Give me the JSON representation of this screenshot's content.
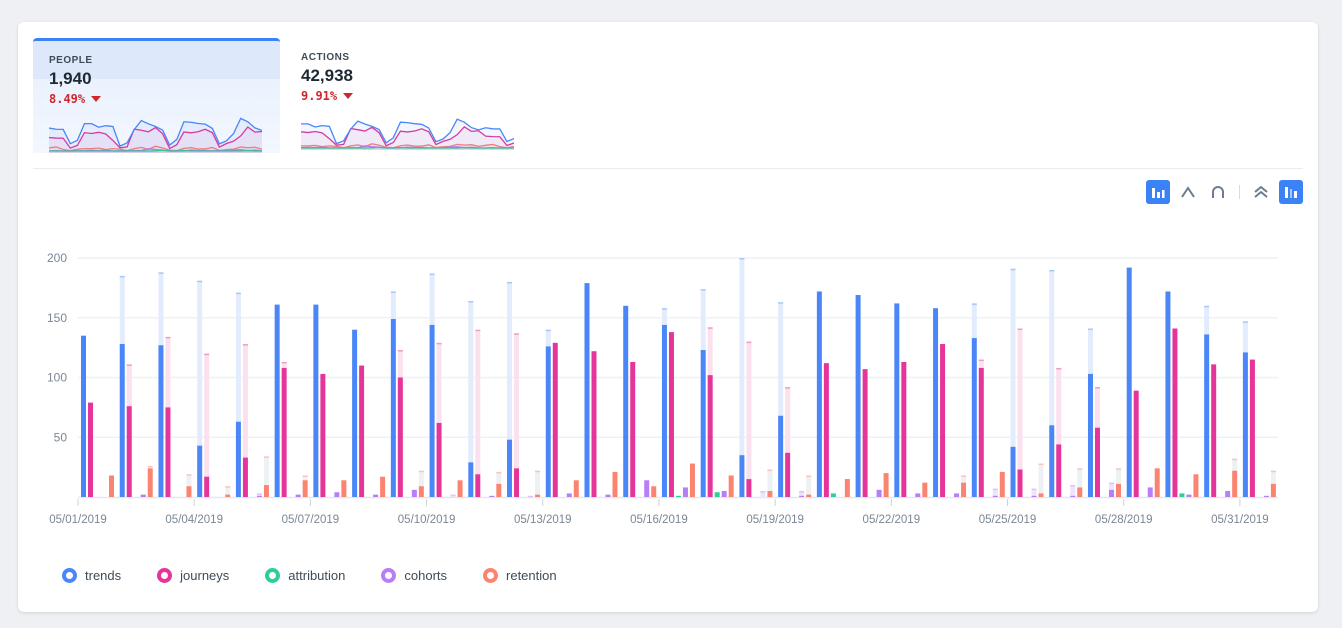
{
  "tabs": [
    {
      "label": "PEOPLE",
      "value": "1,940",
      "delta": "8.49%",
      "direction": "down",
      "active": true
    },
    {
      "label": "ACTIONS",
      "value": "42,938",
      "delta": "9.91%",
      "direction": "down",
      "active": false
    }
  ],
  "toolbar": {
    "icons": [
      "bar-chart-icon",
      "line-chart-icon",
      "smooth-line-icon",
      "stacked-icon",
      "grouped-bar-icon"
    ],
    "active": [
      "bar-chart-icon",
      "grouped-bar-icon"
    ]
  },
  "colors": {
    "trends": "#4a86f7",
    "journeys": "#e6359a",
    "attribution": "#2dcf94",
    "cohorts": "#b77ef5",
    "retention": "#fb8470",
    "accent": "#3b82f6",
    "negative": "#d0262e"
  },
  "chart_data": {
    "type": "bar",
    "ylim": [
      0,
      200
    ],
    "yticks": [
      "200",
      "150",
      "100",
      "50"
    ],
    "ytick_values": [
      200,
      150,
      100,
      50
    ],
    "x": [
      "05/01/2019",
      "05/02/2019",
      "05/03/2019",
      "05/04/2019",
      "05/05/2019",
      "05/06/2019",
      "05/07/2019",
      "05/08/2019",
      "05/09/2019",
      "05/10/2019",
      "05/11/2019",
      "05/12/2019",
      "05/13/2019",
      "05/14/2019",
      "05/15/2019",
      "05/16/2019",
      "05/17/2019",
      "05/18/2019",
      "05/19/2019",
      "05/20/2019",
      "05/21/2019",
      "05/22/2019",
      "05/23/2019",
      "05/24/2019",
      "05/25/2019",
      "05/26/2019",
      "05/27/2019",
      "05/28/2019",
      "05/29/2019",
      "05/30/2019",
      "05/31/2019"
    ],
    "xticks": [
      "05/01/2019",
      "05/04/2019",
      "05/07/2019",
      "05/10/2019",
      "05/13/2019",
      "05/16/2019",
      "05/19/2019",
      "05/22/2019",
      "05/25/2019",
      "05/28/2019",
      "05/31/2019"
    ],
    "xtick_index": [
      0,
      3,
      6,
      9,
      12,
      15,
      18,
      21,
      24,
      27,
      30
    ],
    "grid": true,
    "legend": "bottom-left",
    "series": [
      {
        "name": "trends",
        "values": [
          135,
          128,
          127,
          43,
          63,
          161,
          161,
          140,
          149,
          144,
          29,
          48,
          126,
          179,
          160,
          144,
          123,
          35,
          68,
          172,
          169,
          162,
          158,
          133,
          42,
          60,
          103,
          192,
          172,
          136,
          121
        ],
        "ghost": [
          null,
          185,
          188,
          181,
          171,
          null,
          null,
          null,
          172,
          187,
          164,
          180,
          140,
          null,
          null,
          158,
          174,
          200,
          163,
          null,
          null,
          null,
          null,
          162,
          191,
          190,
          141,
          null,
          null,
          160,
          147
        ]
      },
      {
        "name": "journeys",
        "values": [
          79,
          76,
          75,
          17,
          33,
          108,
          103,
          110,
          100,
          62,
          19,
          24,
          129,
          122,
          113,
          138,
          102,
          15,
          37,
          112,
          107,
          113,
          128,
          108,
          23,
          44,
          58,
          89,
          141,
          111,
          115
        ],
        "ghost": [
          null,
          111,
          134,
          120,
          128,
          113,
          null,
          null,
          123,
          129,
          140,
          137,
          null,
          null,
          null,
          null,
          142,
          130,
          92,
          null,
          null,
          null,
          null,
          115,
          141,
          108,
          92,
          null,
          null,
          null,
          null
        ]
      },
      {
        "name": "attribution",
        "values": [
          0,
          0,
          0,
          0,
          0,
          0,
          0,
          0,
          0,
          0,
          0,
          0,
          0,
          0,
          0,
          1,
          4,
          0,
          0,
          3,
          0,
          0,
          0,
          0,
          0,
          0,
          0,
          0,
          3,
          0,
          0
        ],
        "ghost": [
          null,
          null,
          null,
          null,
          null,
          null,
          null,
          null,
          null,
          null,
          null,
          null,
          null,
          null,
          null,
          null,
          null,
          null,
          null,
          null,
          null,
          null,
          null,
          null,
          null,
          null,
          null,
          null,
          null,
          null,
          null
        ]
      },
      {
        "name": "cohorts",
        "values": [
          0,
          2,
          0,
          0,
          1,
          2,
          4,
          2,
          6,
          0,
          1,
          0,
          3,
          2,
          14,
          8,
          5,
          0,
          1,
          0,
          6,
          3,
          3,
          1,
          1,
          1,
          6,
          8,
          2,
          5,
          1
        ],
        "ghost": [
          null,
          null,
          null,
          null,
          3,
          null,
          null,
          null,
          null,
          2,
          null,
          1,
          null,
          null,
          null,
          null,
          null,
          5,
          5,
          null,
          null,
          null,
          null,
          7,
          7,
          10,
          12,
          null,
          null,
          null,
          null
        ]
      },
      {
        "name": "retention",
        "values": [
          18,
          24,
          9,
          2,
          10,
          14,
          14,
          17,
          9,
          14,
          11,
          2,
          14,
          21,
          9,
          28,
          18,
          5,
          2,
          15,
          20,
          12,
          12,
          21,
          3,
          8,
          11,
          24,
          19,
          22,
          11
        ],
        "ghost": [
          null,
          26,
          19,
          9,
          34,
          18,
          null,
          null,
          22,
          null,
          21,
          22,
          null,
          null,
          null,
          null,
          null,
          23,
          18,
          null,
          null,
          null,
          18,
          null,
          28,
          24,
          24,
          null,
          null,
          32,
          22
        ]
      }
    ]
  }
}
